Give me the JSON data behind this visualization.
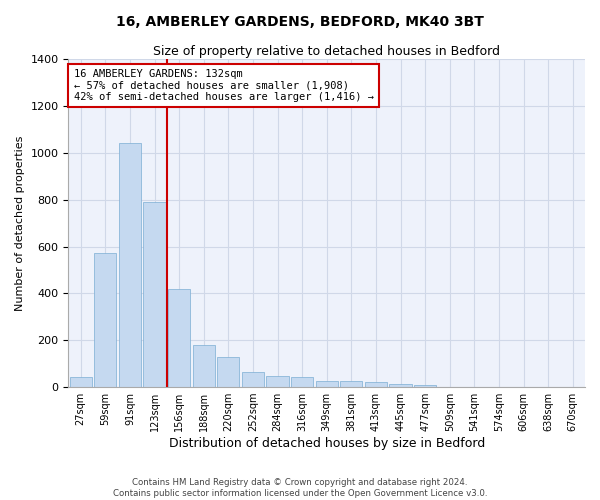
{
  "title": "16, AMBERLEY GARDENS, BEDFORD, MK40 3BT",
  "subtitle": "Size of property relative to detached houses in Bedford",
  "xlabel": "Distribution of detached houses by size in Bedford",
  "ylabel": "Number of detached properties",
  "categories": [
    "27sqm",
    "59sqm",
    "91sqm",
    "123sqm",
    "156sqm",
    "188sqm",
    "220sqm",
    "252sqm",
    "284sqm",
    "316sqm",
    "349sqm",
    "381sqm",
    "413sqm",
    "445sqm",
    "477sqm",
    "509sqm",
    "541sqm",
    "574sqm",
    "606sqm",
    "638sqm",
    "670sqm"
  ],
  "values": [
    45,
    572,
    1040,
    790,
    420,
    180,
    128,
    63,
    48,
    45,
    28,
    25,
    20,
    13,
    10,
    0,
    0,
    0,
    0,
    0,
    0
  ],
  "bar_color": "#c5d9f0",
  "bar_edge_color": "#7badd3",
  "grid_color": "#d0d8e8",
  "background_color": "#eef2fb",
  "vline_color": "#cc0000",
  "vline_x_index": 3.5,
  "annotation_text": "16 AMBERLEY GARDENS: 132sqm\n← 57% of detached houses are smaller (1,908)\n42% of semi-detached houses are larger (1,416) →",
  "annotation_box_color": "#cc0000",
  "ylim": [
    0,
    1400
  ],
  "yticks": [
    0,
    200,
    400,
    600,
    800,
    1000,
    1200,
    1400
  ],
  "footer_line1": "Contains HM Land Registry data © Crown copyright and database right 2024.",
  "footer_line2": "Contains public sector information licensed under the Open Government Licence v3.0."
}
